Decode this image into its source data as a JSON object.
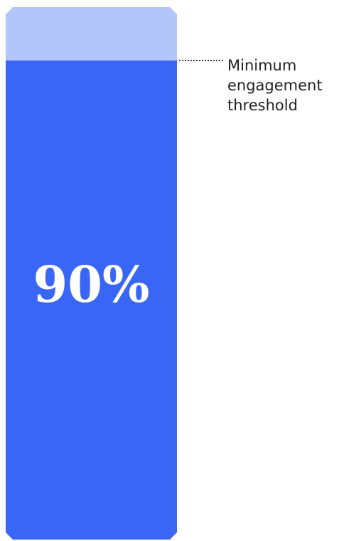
{
  "chart_data": {
    "type": "bar",
    "categories": [
      ""
    ],
    "values": [
      90
    ],
    "ylim": [
      0,
      100
    ],
    "value_label": "90%",
    "annotation": {
      "label": "Minimum engagement threshold",
      "value": 90
    },
    "grid": false,
    "colors": {
      "fill": "#3A66F5",
      "remainder": "#B3C6FA",
      "label": "#FFFFFF",
      "leader": "#333333"
    }
  }
}
